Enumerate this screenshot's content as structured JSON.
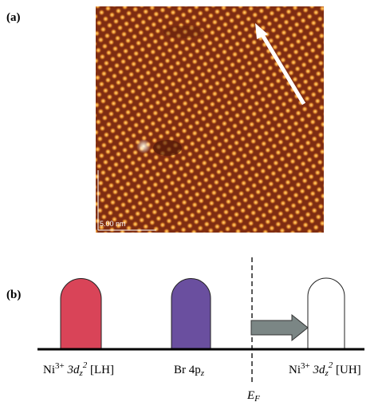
{
  "panel_a": {
    "label": "(a)",
    "scale_bar": "5.00 nm"
  },
  "panel_b": {
    "label": "(b)",
    "levels": [
      {
        "element": "Ni",
        "charge": "3+",
        "orbital": " 3d",
        "orbital_sub": "z",
        "orbital_sup": "2",
        "band": " [LH]"
      },
      {
        "element": "Br 4p",
        "orbital_sub": "z"
      },
      {
        "element": "Ni",
        "charge": "3+",
        "orbital": " 3d",
        "orbital_sub": "z",
        "orbital_sup": "2",
        "band": " [UH]"
      }
    ],
    "fermi": {
      "symbol": "E",
      "sub": "F"
    }
  }
}
